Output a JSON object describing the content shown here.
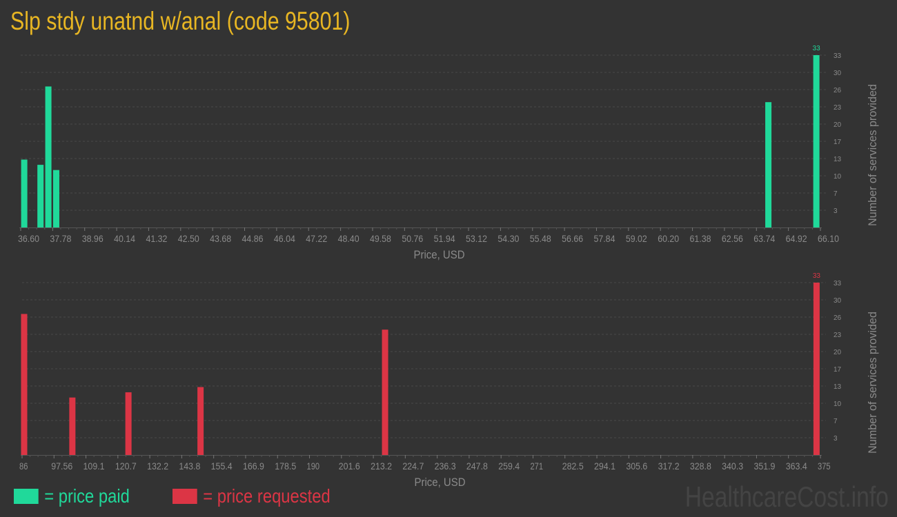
{
  "title": "Slp stdy unatnd w/anal (code 95801)",
  "colors": {
    "paid": "#20d99a",
    "requested": "#dc3545",
    "title": "#e8b623",
    "background": "#333333"
  },
  "legend": {
    "paid_label": "= price paid",
    "requested_label": "= price requested"
  },
  "watermark": "HealthcareCost.info",
  "chart_data": [
    {
      "type": "bar",
      "series_name": "price paid",
      "xlabel": "Price, USD",
      "ylabel": "Number of services provided",
      "xlim": [
        36.6,
        66.1
      ],
      "ylim": [
        0,
        33
      ],
      "xticks": [
        "36.60",
        "37.78",
        "38.96",
        "40.14",
        "41.32",
        "42.50",
        "43.68",
        "44.86",
        "46.04",
        "47.22",
        "48.40",
        "49.58",
        "50.76",
        "51.94",
        "53.12",
        "54.30",
        "55.48",
        "56.66",
        "57.84",
        "59.02",
        "60.20",
        "61.38",
        "62.56",
        "63.74",
        "64.92",
        "66.10"
      ],
      "yticks": [
        "3",
        "7",
        "10",
        "13",
        "17",
        "20",
        "23",
        "26",
        "30",
        "33"
      ],
      "grid": true,
      "points": [
        {
          "x": 36.73,
          "y": 13
        },
        {
          "x": 37.33,
          "y": 12
        },
        {
          "x": 37.62,
          "y": 27
        },
        {
          "x": 37.91,
          "y": 11
        },
        {
          "x": 64.18,
          "y": 24
        },
        {
          "x": 65.95,
          "y": 33
        }
      ],
      "max_label": "33"
    },
    {
      "type": "bar",
      "series_name": "price requested",
      "xlabel": "Price, USD",
      "ylabel": "Number of services provided",
      "xlim": [
        86,
        375
      ],
      "ylim": [
        0,
        33
      ],
      "xticks": [
        "86",
        "97.56",
        "109.1",
        "120.7",
        "132.2",
        "143.8",
        "155.4",
        "166.9",
        "178.5",
        "190",
        "201.6",
        "213.2",
        "224.7",
        "236.3",
        "247.8",
        "259.4",
        "271",
        "282.5",
        "294.1",
        "305.6",
        "317.2",
        "328.8",
        "340.3",
        "351.9",
        "363.4",
        "375"
      ],
      "yticks": [
        "3",
        "7",
        "10",
        "13",
        "17",
        "20",
        "23",
        "26",
        "30",
        "33"
      ],
      "grid": true,
      "points": [
        {
          "x": 86.75,
          "y": 27
        },
        {
          "x": 104.2,
          "y": 11
        },
        {
          "x": 124.5,
          "y": 12
        },
        {
          "x": 150.6,
          "y": 13
        },
        {
          "x": 217.4,
          "y": 24
        },
        {
          "x": 373.6,
          "y": 33
        }
      ],
      "max_label": "33"
    }
  ]
}
